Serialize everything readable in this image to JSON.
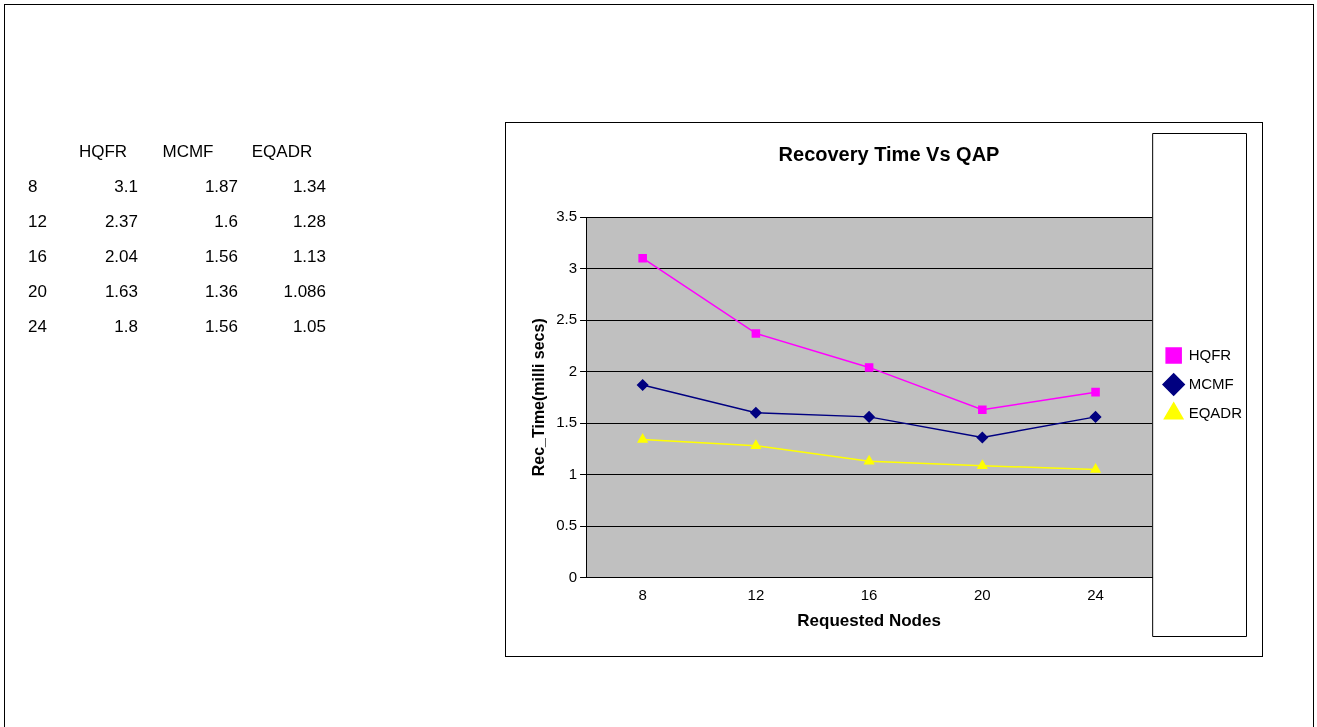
{
  "chart_data": [
    {
      "type": "heatmap",
      "categories": [
        "HQFR",
        "MCMF",
        "EQADR"
      ],
      "y_categories": [
        "8",
        "12",
        "16",
        "20",
        "24"
      ],
      "cells": [
        [
          3.1,
          1.87,
          1.34
        ],
        [
          2.37,
          1.6,
          1.28
        ],
        [
          2.04,
          1.56,
          1.13
        ],
        [
          1.63,
          1.36,
          1.086
        ],
        [
          1.8,
          1.56,
          1.05
        ]
      ],
      "data_labels": true
    },
    {
      "type": "line",
      "title": "Recovery Time Vs QAP",
      "xlabel": "Requested Nodes",
      "ylabel": "Rec_Time(milli secs)",
      "categories": [
        "8",
        "12",
        "16",
        "20",
        "24"
      ],
      "series": [
        {
          "name": "HQFR",
          "color": "#ff00ff",
          "marker": "square",
          "values": [
            3.1,
            2.37,
            2.04,
            1.63,
            1.8
          ]
        },
        {
          "name": "MCMF",
          "color": "#000080",
          "marker": "diamond",
          "values": [
            1.87,
            1.6,
            1.56,
            1.36,
            1.56
          ]
        },
        {
          "name": "EQADR",
          "color": "#ffff00",
          "marker": "triangle",
          "values": [
            1.34,
            1.28,
            1.13,
            1.086,
            1.05
          ]
        }
      ],
      "ylim": [
        0,
        3.5
      ],
      "yticks": [
        0,
        0.5,
        1,
        1.5,
        2,
        2.5,
        3,
        3.5
      ],
      "grid": "y",
      "legend": "right"
    }
  ]
}
